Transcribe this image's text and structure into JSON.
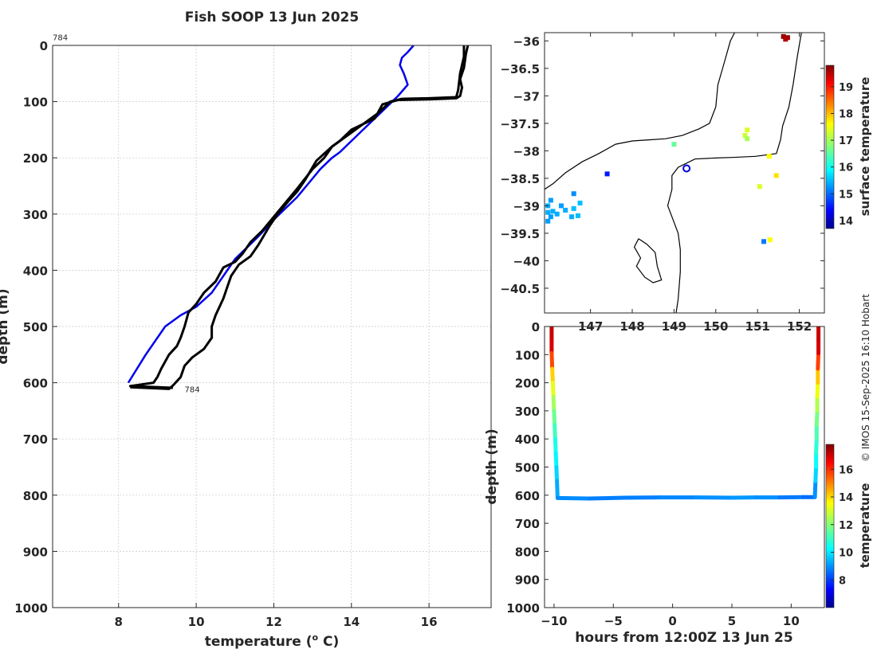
{
  "colors": {
    "profile_line": "#000000",
    "climatology_line": "#0000ee",
    "grid": "#c8c8c8",
    "axis": "#262626",
    "location_marker": "#0000dd"
  },
  "credit": "© IMOS 15-Sep-2025 16:10 Hobart",
  "chart_data": [
    {
      "id": "profile",
      "type": "line",
      "title": "Fish SOOP 13 Jun 2025",
      "xlabel": "temperature (° C)",
      "xlabel_main": "temperature (",
      "xlabel_sup": "o",
      "xlabel_tail": " C)",
      "ylabel": "depth (m)",
      "xlim": [
        6.3,
        17.6
      ],
      "ylim": [
        0,
        1000
      ],
      "y_reversed": true,
      "grid": true,
      "xticks": [
        8,
        10,
        12,
        14,
        16
      ],
      "yticks": [
        0,
        100,
        200,
        300,
        400,
        500,
        600,
        700,
        800,
        900,
        1000
      ],
      "annotations": [
        {
          "text": "784",
          "x": 6.3,
          "y": -15
        },
        {
          "text": "784",
          "x": 9.7,
          "y": 611
        }
      ],
      "series": [
        {
          "name": "climatology",
          "color": "#0000ee",
          "points": [
            [
              15.6,
              0
            ],
            [
              15.45,
              12
            ],
            [
              15.3,
              22
            ],
            [
              15.25,
              35
            ],
            [
              15.35,
              50
            ],
            [
              15.45,
              70
            ],
            [
              15.2,
              90
            ],
            [
              14.9,
              110
            ],
            [
              14.6,
              130
            ],
            [
              14.3,
              150
            ],
            [
              14.0,
              170
            ],
            [
              13.7,
              190
            ],
            [
              13.5,
              200
            ],
            [
              13.2,
              220
            ],
            [
              12.9,
              245
            ],
            [
              12.6,
              270
            ],
            [
              12.3,
              290
            ],
            [
              12.0,
              310
            ],
            [
              11.6,
              340
            ],
            [
              11.3,
              360
            ],
            [
              11.0,
              380
            ],
            [
              10.7,
              410
            ],
            [
              10.4,
              440
            ],
            [
              10.0,
              465
            ],
            [
              9.6,
              480
            ],
            [
              9.2,
              500
            ],
            [
              8.7,
              550
            ],
            [
              8.25,
              600
            ]
          ]
        },
        {
          "name": "profile-a",
          "color": "#000000",
          "points": [
            [
              17.0,
              0
            ],
            [
              16.95,
              15
            ],
            [
              16.9,
              40
            ],
            [
              16.8,
              60
            ],
            [
              16.85,
              75
            ],
            [
              16.8,
              90
            ],
            [
              16.7,
              94
            ],
            [
              16.0,
              96
            ],
            [
              15.2,
              97
            ],
            [
              14.8,
              105
            ],
            [
              14.6,
              130
            ],
            [
              14.0,
              150
            ],
            [
              13.7,
              170
            ],
            [
              13.5,
              180
            ],
            [
              13.1,
              205
            ],
            [
              12.8,
              240
            ],
            [
              12.6,
              260
            ],
            [
              12.4,
              275
            ],
            [
              12.1,
              300
            ],
            [
              11.9,
              320
            ],
            [
              11.6,
              355
            ],
            [
              11.4,
              375
            ],
            [
              11.1,
              390
            ],
            [
              10.9,
              410
            ],
            [
              10.8,
              430
            ],
            [
              10.7,
              450
            ],
            [
              10.5,
              480
            ],
            [
              10.4,
              500
            ],
            [
              10.4,
              520
            ],
            [
              10.2,
              540
            ],
            [
              9.9,
              555
            ],
            [
              9.7,
              570
            ],
            [
              9.6,
              590
            ],
            [
              9.4,
              605
            ],
            [
              9.3,
              611
            ],
            [
              8.3,
              608
            ]
          ]
        },
        {
          "name": "profile-b",
          "color": "#000000",
          "points": [
            [
              16.9,
              0
            ],
            [
              16.9,
              20
            ],
            [
              16.8,
              50
            ],
            [
              16.75,
              80
            ],
            [
              16.7,
              92
            ],
            [
              16.0,
              94
            ],
            [
              15.3,
              95
            ],
            [
              15.0,
              100
            ],
            [
              14.7,
              120
            ],
            [
              14.3,
              140
            ],
            [
              13.9,
              160
            ],
            [
              13.5,
              180
            ],
            [
              13.3,
              200
            ],
            [
              13.0,
              220
            ],
            [
              12.6,
              255
            ],
            [
              12.3,
              280
            ],
            [
              12.0,
              305
            ],
            [
              11.7,
              330
            ],
            [
              11.4,
              350
            ],
            [
              11.2,
              370
            ],
            [
              11.0,
              385
            ],
            [
              10.7,
              395
            ],
            [
              10.5,
              420
            ],
            [
              10.2,
              440
            ],
            [
              10.0,
              460
            ],
            [
              9.8,
              475
            ],
            [
              9.7,
              500
            ],
            [
              9.6,
              520
            ],
            [
              9.5,
              535
            ],
            [
              9.3,
              550
            ],
            [
              9.1,
              575
            ],
            [
              9.0,
              590
            ],
            [
              8.9,
              600
            ],
            [
              8.3,
              606
            ],
            [
              9.4,
              609
            ]
          ]
        }
      ]
    },
    {
      "id": "map",
      "type": "scatter",
      "title": "",
      "xlabel": "",
      "ylabel": "",
      "xlim": [
        145.9,
        152.6
      ],
      "ylim": [
        -40.95,
        -35.85
      ],
      "grid": false,
      "xticks": [
        147,
        148,
        149,
        150,
        151,
        152
      ],
      "yticks": [
        -36,
        -36.5,
        -37,
        -37.5,
        -38,
        -38.5,
        -39,
        -39.5,
        -40,
        -40.5
      ],
      "colorbar": {
        "label": "surface temperature",
        "range": [
          13.7,
          19.8
        ],
        "ticks": [
          14,
          15,
          16,
          17,
          18,
          19
        ]
      },
      "location_marker": {
        "lon": 149.3,
        "lat": -38.32
      },
      "coastline": [
        [
          [
            152.05,
            -35.85
          ],
          [
            151.95,
            -36.3
          ],
          [
            151.85,
            -36.8
          ],
          [
            151.75,
            -37.2
          ],
          [
            151.6,
            -37.55
          ],
          [
            151.55,
            -37.8
          ],
          [
            151.45,
            -38.05
          ],
          [
            150.95,
            -38.1
          ],
          [
            150.4,
            -38.12
          ],
          [
            150.0,
            -38.13
          ],
          [
            149.5,
            -38.15
          ],
          [
            149.1,
            -38.3
          ],
          [
            148.95,
            -38.45
          ],
          [
            148.95,
            -38.7
          ],
          [
            148.85,
            -39.0
          ],
          [
            148.95,
            -39.2
          ],
          [
            149.1,
            -39.5
          ],
          [
            149.15,
            -39.8
          ],
          [
            149.15,
            -40.2
          ],
          [
            149.1,
            -40.7
          ],
          [
            149.05,
            -40.95
          ]
        ],
        [
          [
            145.9,
            -38.7
          ],
          [
            146.1,
            -38.6
          ],
          [
            146.4,
            -38.4
          ],
          [
            146.8,
            -38.2
          ],
          [
            147.2,
            -38.05
          ],
          [
            147.6,
            -37.88
          ],
          [
            148.0,
            -37.82
          ],
          [
            148.4,
            -37.8
          ],
          [
            148.8,
            -37.78
          ],
          [
            149.2,
            -37.72
          ],
          [
            149.6,
            -37.6
          ],
          [
            149.85,
            -37.5
          ],
          [
            150.0,
            -37.2
          ],
          [
            150.05,
            -36.8
          ],
          [
            150.2,
            -36.4
          ],
          [
            150.35,
            -36.0
          ],
          [
            150.45,
            -35.85
          ]
        ],
        [
          [
            148.15,
            -39.6
          ],
          [
            148.05,
            -39.75
          ],
          [
            148.2,
            -39.95
          ],
          [
            148.1,
            -40.1
          ],
          [
            148.3,
            -40.3
          ],
          [
            148.5,
            -40.4
          ],
          [
            148.7,
            -40.35
          ],
          [
            148.6,
            -40.1
          ],
          [
            148.55,
            -39.85
          ],
          [
            148.35,
            -39.7
          ],
          [
            148.15,
            -39.6
          ]
        ]
      ],
      "points": [
        {
          "lon": 151.62,
          "lat": -35.92,
          "t": 19.7
        },
        {
          "lon": 151.72,
          "lat": -35.94,
          "t": 19.6
        },
        {
          "lon": 151.67,
          "lat": -35.97,
          "t": 19.5
        },
        {
          "lon": 149.0,
          "lat": -37.88,
          "t": 16.6
        },
        {
          "lon": 150.75,
          "lat": -37.62,
          "t": 17.3
        },
        {
          "lon": 150.7,
          "lat": -37.72,
          "t": 17.2
        },
        {
          "lon": 150.75,
          "lat": -37.78,
          "t": 17.0
        },
        {
          "lon": 151.28,
          "lat": -38.1,
          "t": 17.5
        },
        {
          "lon": 151.45,
          "lat": -38.45,
          "t": 17.7
        },
        {
          "lon": 151.05,
          "lat": -38.65,
          "t": 17.3
        },
        {
          "lon": 151.3,
          "lat": -39.62,
          "t": 17.5
        },
        {
          "lon": 151.15,
          "lat": -39.65,
          "t": 15.2
        },
        {
          "lon": 147.4,
          "lat": -38.42,
          "t": 14.6
        },
        {
          "lon": 146.6,
          "lat": -38.78,
          "t": 15.3
        },
        {
          "lon": 146.75,
          "lat": -38.95,
          "t": 15.6
        },
        {
          "lon": 146.6,
          "lat": -39.05,
          "t": 15.6
        },
        {
          "lon": 146.4,
          "lat": -39.08,
          "t": 15.5
        },
        {
          "lon": 146.3,
          "lat": -39.0,
          "t": 15.4
        },
        {
          "lon": 146.05,
          "lat": -38.9,
          "t": 15.4
        },
        {
          "lon": 145.98,
          "lat": -39.0,
          "t": 15.5
        },
        {
          "lon": 145.98,
          "lat": -39.12,
          "t": 15.5
        },
        {
          "lon": 146.05,
          "lat": -39.2,
          "t": 15.4
        },
        {
          "lon": 145.98,
          "lat": -39.28,
          "t": 15.4
        },
        {
          "lon": 146.1,
          "lat": -39.1,
          "t": 15.5
        },
        {
          "lon": 146.2,
          "lat": -39.15,
          "t": 15.5
        },
        {
          "lon": 146.7,
          "lat": -39.18,
          "t": 15.6
        },
        {
          "lon": 146.55,
          "lat": -39.2,
          "t": 15.5
        }
      ]
    },
    {
      "id": "section",
      "type": "scatter",
      "title": "",
      "xlabel": "hours from 12:00Z 13 Jun 25",
      "ylabel": "depth (m)",
      "xlim": [
        -10.8,
        12.8
      ],
      "ylim": [
        0,
        1000
      ],
      "y_reversed": true,
      "grid": false,
      "xticks": [
        -10,
        -5,
        0,
        5,
        10
      ],
      "yticks": [
        0,
        100,
        200,
        300,
        400,
        500,
        600,
        700,
        800,
        900,
        1000
      ],
      "colorbar": {
        "label": "temperature",
        "range": [
          6.0,
          17.8
        ],
        "ticks": [
          8,
          10,
          12,
          14,
          16
        ]
      },
      "casts": [
        {
          "points": [
            [
              -10.2,
              0,
              17.0
            ],
            [
              -10.2,
              50,
              16.9
            ],
            [
              -10.2,
              95,
              16.7
            ],
            [
              -10.15,
              150,
              14.3
            ],
            [
              -10.1,
              200,
              13.5
            ],
            [
              -10.05,
              250,
              12.7
            ],
            [
              -10.0,
              300,
              12.0
            ],
            [
              -9.95,
              350,
              11.4
            ],
            [
              -9.9,
              400,
              10.9
            ],
            [
              -9.85,
              450,
              10.5
            ],
            [
              -9.8,
              500,
              10.2
            ],
            [
              -9.75,
              550,
              9.7
            ],
            [
              -9.7,
              610,
              9.2
            ]
          ]
        },
        {
          "points": [
            [
              -9.7,
              610,
              9.2
            ],
            [
              -7.0,
              612,
              9.0
            ],
            [
              -4.0,
              609,
              8.9
            ],
            [
              -1.0,
              608,
              9.0
            ],
            [
              2.0,
              608,
              9.1
            ],
            [
              5.0,
              609,
              9.2
            ],
            [
              7.0,
              608,
              9.3
            ],
            [
              9.0,
              608,
              9.0
            ],
            [
              11.0,
              607,
              8.8
            ],
            [
              12.0,
              607,
              8.7
            ]
          ]
        },
        {
          "points": [
            [
              12.0,
              607,
              8.7
            ],
            [
              12.05,
              550,
              9.6
            ],
            [
              12.1,
              500,
              10.3
            ],
            [
              12.1,
              450,
              10.7
            ],
            [
              12.15,
              400,
              11.1
            ],
            [
              12.15,
              350,
              11.5
            ],
            [
              12.2,
              300,
              12.1
            ],
            [
              12.2,
              250,
              12.8
            ],
            [
              12.25,
              200,
              13.6
            ],
            [
              12.25,
              150,
              14.5
            ],
            [
              12.3,
              95,
              16.7
            ],
            [
              12.3,
              50,
              16.9
            ],
            [
              12.3,
              0,
              17.0
            ]
          ]
        }
      ]
    }
  ]
}
